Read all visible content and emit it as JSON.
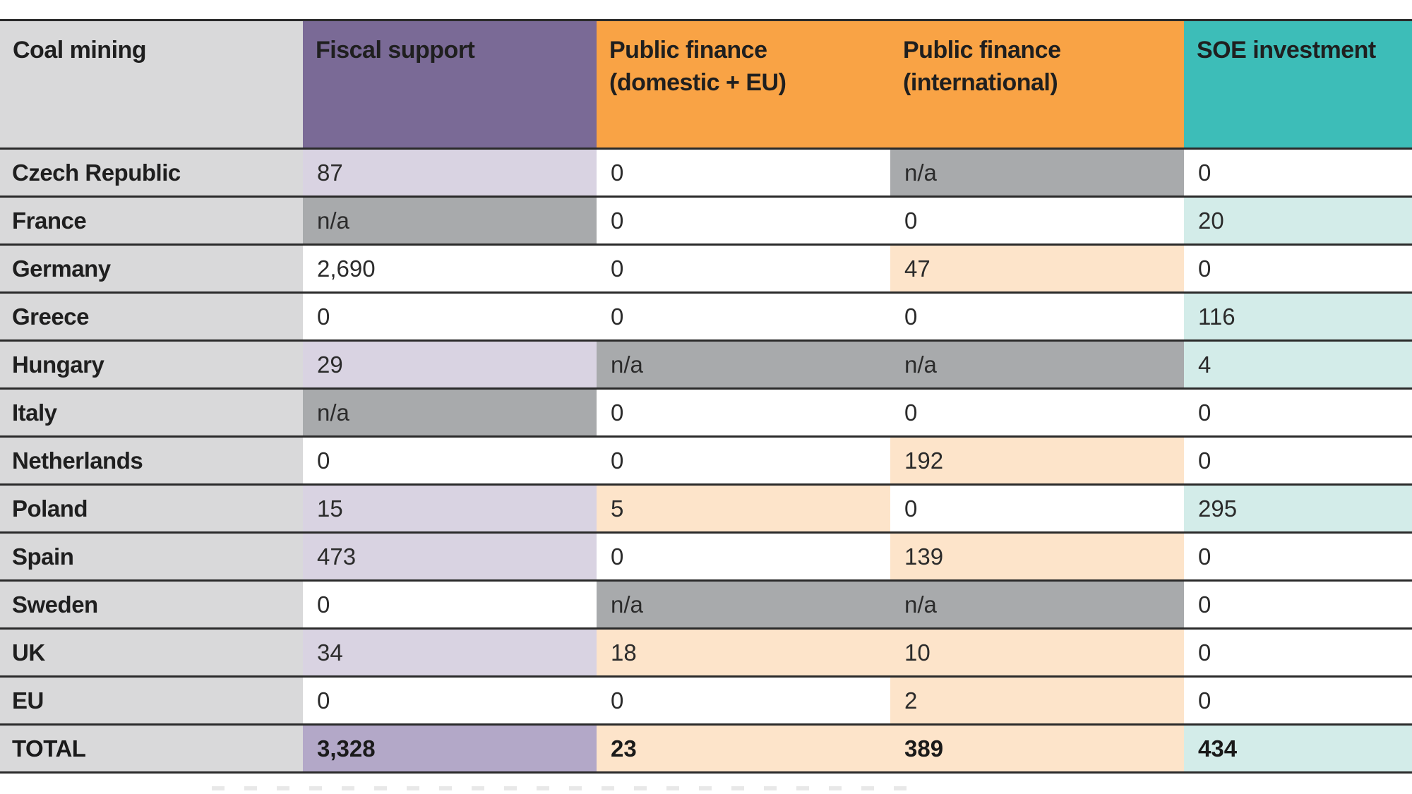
{
  "colors": {
    "header_label_bg": "#d9d9da",
    "header_fiscal_bg": "#7a6a96",
    "header_public_bg": "#f9a345",
    "header_soe_bg": "#3dbdb8",
    "rowhead_bg": "#d9d9da",
    "na_bg": "#a8aaac",
    "fiscal_light": "#d9d3e2",
    "fiscal_total": "#b3a8c8",
    "public_light": "#fde4ca",
    "soe_light": "#d3ece9",
    "white": "#ffffff"
  },
  "table": {
    "headers": [
      "Coal mining",
      "Fiscal support",
      "Public finance (domestic + EU)",
      "Public finance (international)",
      "SOE investment"
    ],
    "rows": [
      {
        "label": "Czech Republic",
        "cells": [
          "87",
          "0",
          "n/a",
          "0"
        ],
        "shades": [
          "fiscal_light",
          "white",
          "na_bg",
          "white"
        ]
      },
      {
        "label": "France",
        "cells": [
          "n/a",
          "0",
          "0",
          "20"
        ],
        "shades": [
          "na_bg",
          "white",
          "white",
          "soe_light"
        ]
      },
      {
        "label": "Germany",
        "cells": [
          "2,690",
          "0",
          "47",
          "0"
        ],
        "shades": [
          "white",
          "white",
          "public_light",
          "white"
        ]
      },
      {
        "label": "Greece",
        "cells": [
          "0",
          "0",
          "0",
          "116"
        ],
        "shades": [
          "white",
          "white",
          "white",
          "soe_light"
        ]
      },
      {
        "label": "Hungary",
        "cells": [
          "29",
          "n/a",
          "n/a",
          "4"
        ],
        "shades": [
          "fiscal_light",
          "na_bg",
          "na_bg",
          "soe_light"
        ]
      },
      {
        "label": "Italy",
        "cells": [
          "n/a",
          "0",
          "0",
          "0"
        ],
        "shades": [
          "na_bg",
          "white",
          "white",
          "white"
        ]
      },
      {
        "label": "Netherlands",
        "cells": [
          "0",
          "0",
          "192",
          "0"
        ],
        "shades": [
          "white",
          "white",
          "public_light",
          "white"
        ]
      },
      {
        "label": "Poland",
        "cells": [
          "15",
          "5",
          "0",
          "295"
        ],
        "shades": [
          "fiscal_light",
          "public_light",
          "white",
          "soe_light"
        ]
      },
      {
        "label": "Spain",
        "cells": [
          "473",
          "0",
          "139",
          "0"
        ],
        "shades": [
          "fiscal_light",
          "white",
          "public_light",
          "white"
        ]
      },
      {
        "label": "Sweden",
        "cells": [
          "0",
          "n/a",
          "n/a",
          "0"
        ],
        "shades": [
          "white",
          "na_bg",
          "na_bg",
          "white"
        ]
      },
      {
        "label": "UK",
        "cells": [
          "34",
          "18",
          "10",
          "0"
        ],
        "shades": [
          "fiscal_light",
          "public_light",
          "public_light",
          "white"
        ]
      },
      {
        "label": "EU",
        "cells": [
          "0",
          "0",
          "2",
          "0"
        ],
        "shades": [
          "white",
          "white",
          "public_light",
          "white"
        ]
      }
    ],
    "total": {
      "label": "TOTAL",
      "cells": [
        "3,328",
        "23",
        "389",
        "434"
      ],
      "shades": [
        "fiscal_total",
        "public_light",
        "public_light",
        "soe_light"
      ]
    }
  }
}
